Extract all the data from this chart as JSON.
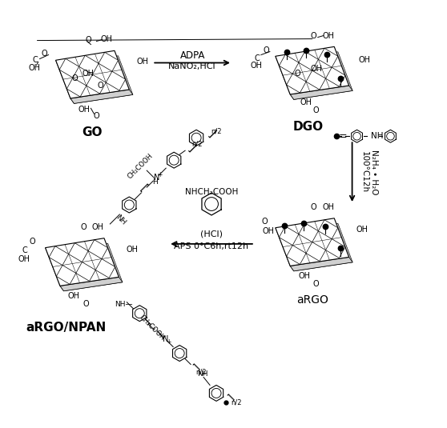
{
  "bg": "#ffffff",
  "labels": {
    "GO": "GO",
    "DGO": "DGO",
    "aRGO": "aRGO",
    "aRGO_NPAN": "aRGO/NPAN"
  },
  "arrow1_top": "ADPA",
  "arrow1_bot": "NaNO₂,HCl",
  "arrow2_top": "100°C12h",
  "arrow2_bot": "N₂H₄ • H₂O",
  "arrow3_top": "(HCl)",
  "arrow3_bot": "APS 0°C6h,rt12h",
  "monomer_nh": "NHCH₂COOH"
}
